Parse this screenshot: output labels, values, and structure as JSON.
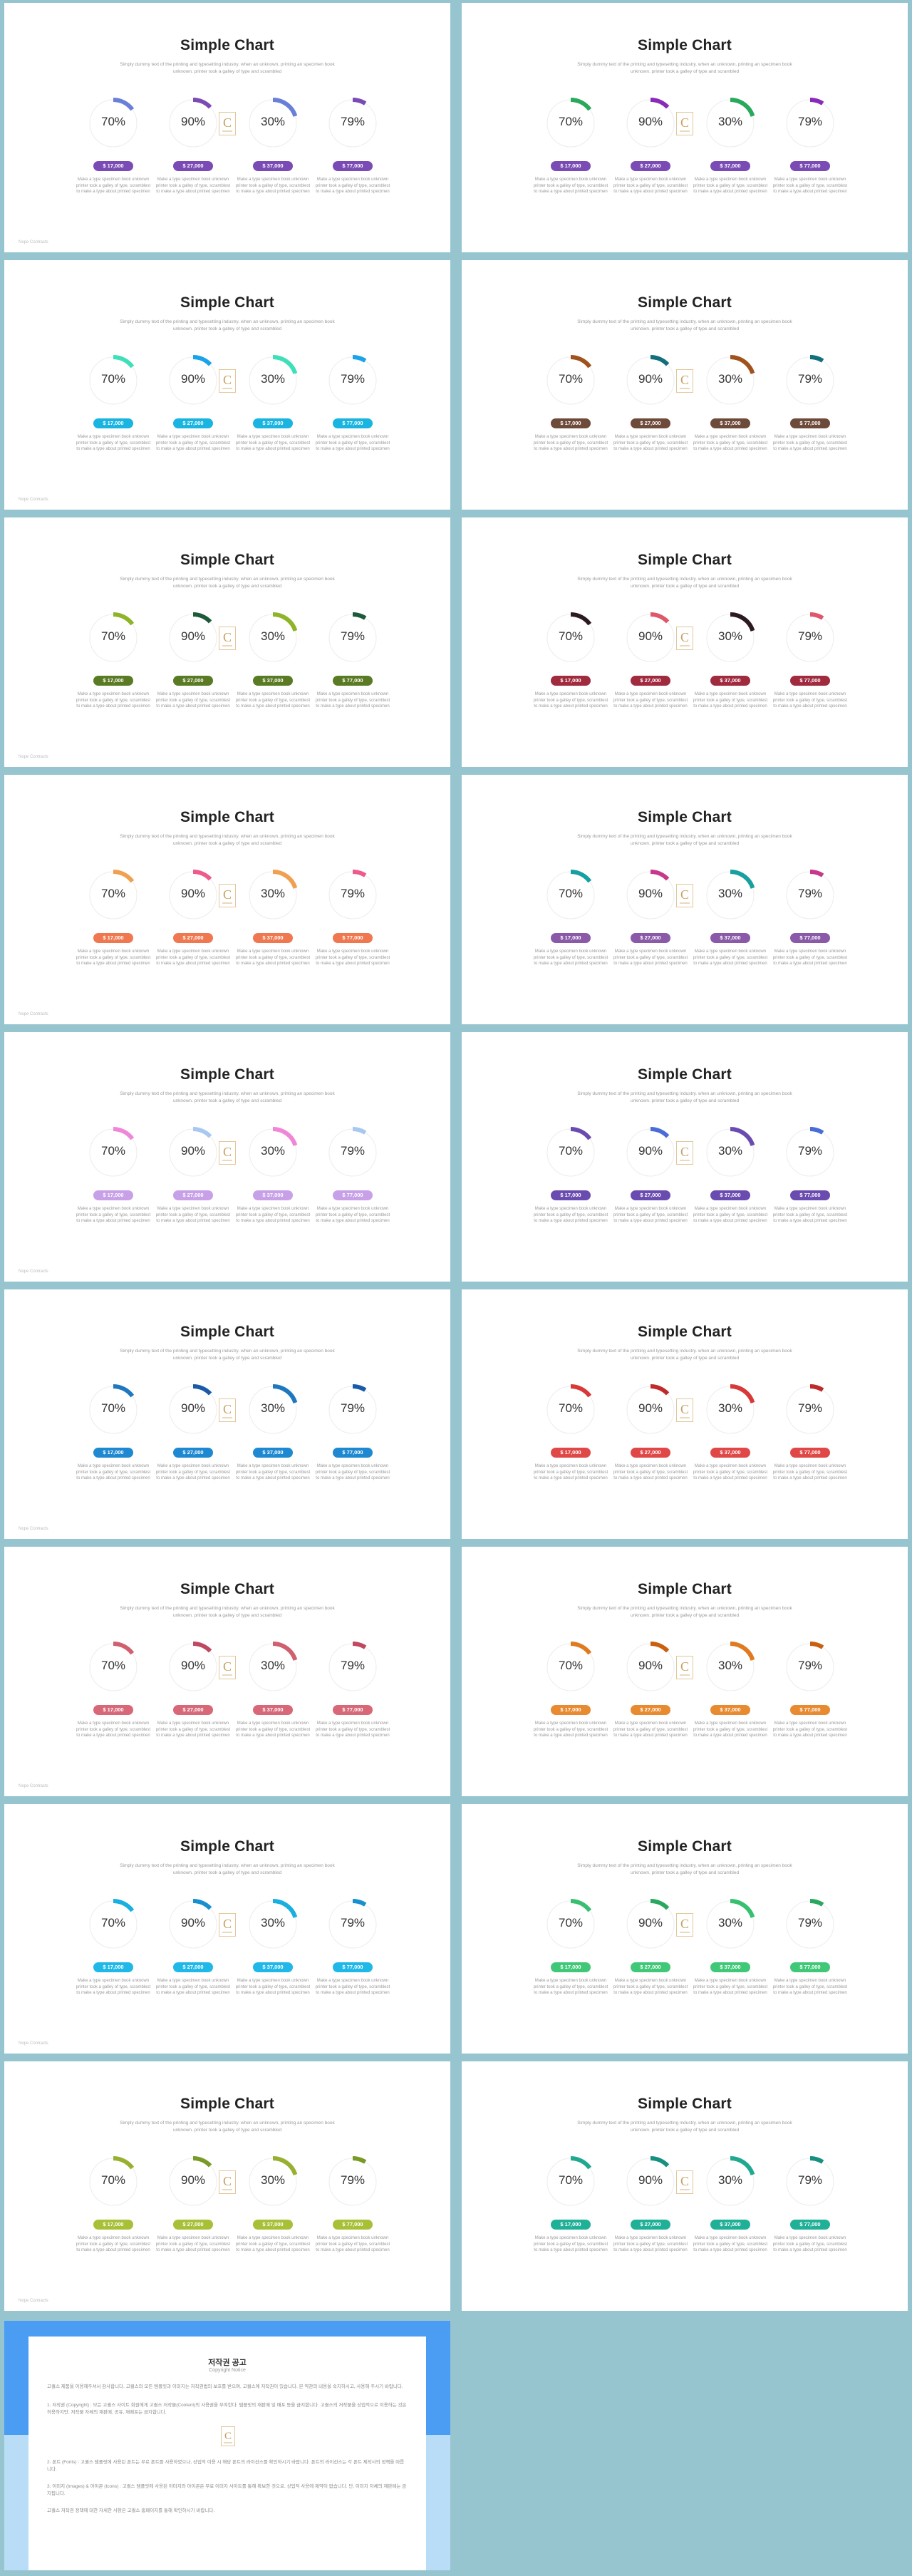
{
  "slide_common": {
    "title": "Simple Chart",
    "subtitle": "Simply dummy text of the printing and typesetting industry. when an unknown, printing an specimen book unknown. printer took a galley of type and scrambled",
    "percents": [
      "70%",
      "90%",
      "30%",
      "79%"
    ],
    "amounts": [
      "$ 17,000",
      "$ 27,000",
      "$ 37,000",
      "$ 77,000"
    ],
    "item_desc": "Make a type specimen book unknown printer took a galley of type, scramblest to make a type about printed specimen",
    "footer": "Nope Contracts",
    "logo_icon": "c-monogram-logo-icon"
  },
  "slides": [
    {
      "c1": "#6a7fd8",
      "c2": "#7b4bb5",
      "pill": "#7b4bb5"
    },
    {
      "c1": "#2aa85c",
      "c2": "#8a2bb8",
      "pill": "#7b4bb5"
    },
    {
      "c1": "#3fe0b8",
      "c2": "#1aa3e8",
      "pill": "#1ab4e0"
    },
    {
      "c1": "#a0521d",
      "c2": "#11707c",
      "pill": "#6e4a3a"
    },
    {
      "c1": "#8fb329",
      "c2": "#1c5a3a",
      "pill": "#5a7a24"
    },
    {
      "c1": "#2b1a22",
      "c2": "#e0566a",
      "pill": "#a02a3e"
    },
    {
      "c1": "#f0a050",
      "c2": "#ee5a8a",
      "pill": "#f07850"
    },
    {
      "c1": "#18a0a0",
      "c2": "#c8388a",
      "pill": "#8a5aa8"
    },
    {
      "c1": "#f086d8",
      "c2": "#a8c8f0",
      "pill": "#c8a0e8"
    },
    {
      "c1": "#6a4cb0",
      "c2": "#4a6cd8",
      "pill": "#6a4cb0"
    },
    {
      "c1": "#1e78c0",
      "c2": "#1a5aa8",
      "pill": "#1e88d0"
    },
    {
      "c1": "#d83838",
      "c2": "#c02a2a",
      "pill": "#e04848"
    },
    {
      "c1": "#d06070",
      "c2": "#c04860",
      "pill": "#d86878"
    },
    {
      "c1": "#e07a20",
      "c2": "#c86010",
      "pill": "#e88a30"
    },
    {
      "c1": "#18b0e0",
      "c2": "#1890d0",
      "pill": "#20b8e8"
    },
    {
      "c1": "#38c070",
      "c2": "#2aa860",
      "pill": "#40c878"
    },
    {
      "c1": "#98b030",
      "c2": "#7a9a28",
      "pill": "#a8c038"
    },
    {
      "c1": "#20a890",
      "c2": "#189080",
      "pill": "#20b098"
    }
  ],
  "copyright": {
    "title": "저작권 공고",
    "subtitle": "Copyright Notice",
    "para1": "고퀄스 제품을 이용해주셔서 감사합니다. 고퀄스의 모든 템플릿과 이미지는 저작권법의 보호를 받으며, 고퀄스에 저작권이 있습니다. 본 약관의 내용을 숙지하시고, 사용해 주시기 바랍니다.",
    "para2": "1. 저작권 (Copyright) : 모든 고퀄스 사이트 회원에게 고퀄스 저작물(Content)의 사용권을 부여한다. 템플릿의 재판매 및 배포 등을 금지합니다. 고퀄스의 저작물을 상업적으로 이용하는 것은 허용하지만, 저작물 자체의 재판매, 공유, 재배포는 금지합니다.",
    "para3": "2. 폰트 (Fonts) : 고퀄스 템플릿에 사용된 폰트는 무료 폰트를 사용하였으나, 상업적 이용 시 해당 폰트의 라이선스를 확인하시기 바랍니다. 폰트의 라이선스는 각 폰트 제작사의 정책을 따릅니다.",
    "para4": "3. 이미지 (Images) & 아이콘 (Icons) : 고퀄스 템플릿에 사용된 이미지와 아이콘은 무료 이미지 사이트를 통해 확보한 것으로, 상업적 사용에 제약이 없습니다. 단, 이미지 자체의 재판매는 금지됩니다.",
    "para5": "고퀄스 저작권 정책에 대한 자세한 사항은 고퀄스 홈페이지를 통해 확인하시기 바랍니다."
  }
}
